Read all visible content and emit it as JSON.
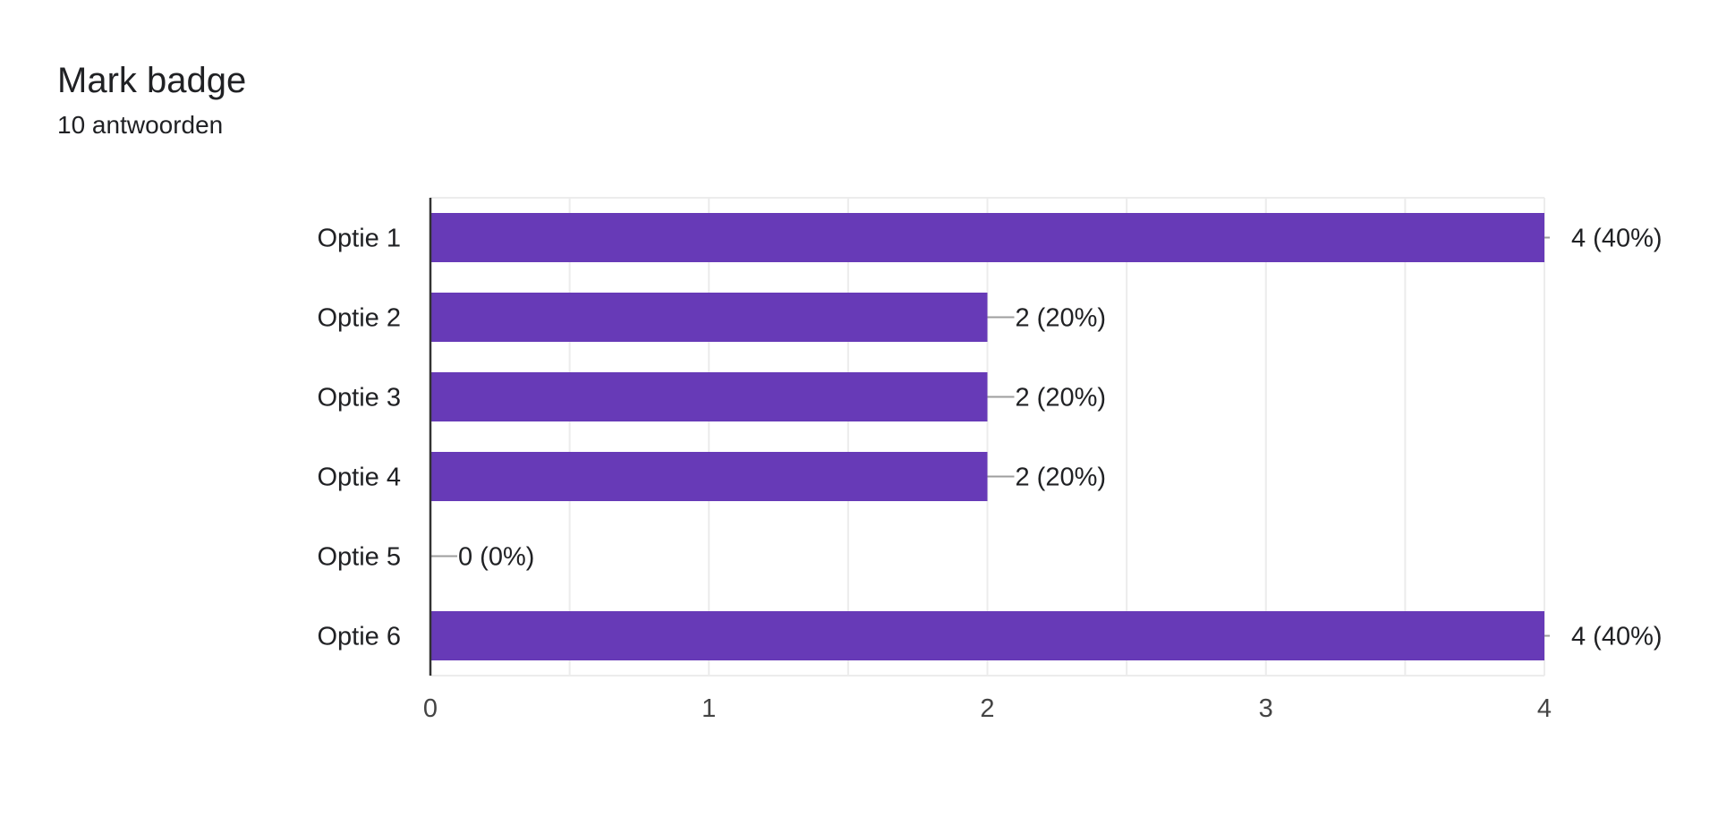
{
  "header": {
    "title": "Mark badge",
    "subtitle": "10 antwoorden"
  },
  "chart_data": {
    "type": "bar",
    "orientation": "horizontal",
    "title": "Mark badge",
    "subtitle": "10 antwoorden",
    "categories": [
      "Optie 1",
      "Optie 2",
      "Optie 3",
      "Optie 4",
      "Optie 5",
      "Optie 6"
    ],
    "values": [
      4,
      2,
      2,
      2,
      0,
      4
    ],
    "data_labels": [
      "4 (40%)",
      "2 (20%)",
      "2 (20%)",
      "2 (20%)",
      "0 (0%)",
      "4 (40%)"
    ],
    "xlim": [
      0,
      4
    ],
    "xticks": [
      "0",
      "1",
      "2",
      "3",
      "4"
    ],
    "xlabel": "",
    "ylabel": "",
    "grid": true,
    "colors": {
      "bar": "#673ab7",
      "grid": "#ececec",
      "axis": "#333333",
      "leader": "#9e9e9e"
    }
  }
}
